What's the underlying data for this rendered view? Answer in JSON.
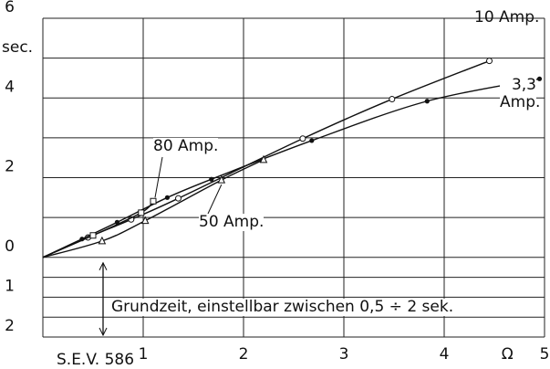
{
  "chart_data": {
    "type": "line",
    "y_axis_label": "sec.",
    "x_unit_label": "Ω",
    "source": "S.E.V. 586",
    "annotation": "Grundzeit, einstellbar zwischen 0,5 ÷ 2 sek.",
    "annotation_x": 0.6,
    "annotation_range": [
      0,
      -2
    ],
    "xlim": [
      0,
      5
    ],
    "xticks": [
      1,
      2,
      3,
      4,
      5
    ],
    "ylim": [
      -2,
      6
    ],
    "yticks": [
      0,
      2,
      4,
      6,
      {
        "value": -1,
        "label": "1"
      },
      {
        "value": -2,
        "label": "2"
      }
    ],
    "y_minor_ticks": [
      1,
      3,
      5,
      -0.5,
      -1.5
    ],
    "grid": true,
    "series": [
      {
        "name": "10 Amp.",
        "marker": "open-circle",
        "x": [
          0,
          0.45,
          0.88,
          1.35,
          2.59,
          3.48,
          4.45
        ],
        "values": [
          0,
          0.5,
          0.95,
          1.48,
          2.98,
          3.97,
          4.93
        ]
      },
      {
        "name": "3,3 Amp.",
        "marker": "dot",
        "x": [
          0,
          0.39,
          0.74,
          1.24,
          1.68,
          2.68,
          3.83,
          4.95
        ],
        "values": [
          0,
          0.46,
          0.88,
          1.5,
          1.96,
          2.93,
          3.92,
          4.48
        ]
      },
      {
        "name": "80 Amp.",
        "marker": "open-square",
        "x": [
          0,
          0.5,
          0.98,
          1.1
        ],
        "values": [
          0,
          0.55,
          1.12,
          1.41
        ]
      },
      {
        "name": "50 Amp.",
        "marker": "triangle",
        "x": [
          0,
          0.59,
          1.02,
          1.78,
          2.2
        ],
        "values": [
          0,
          0.41,
          0.92,
          1.94,
          2.45
        ]
      }
    ]
  }
}
